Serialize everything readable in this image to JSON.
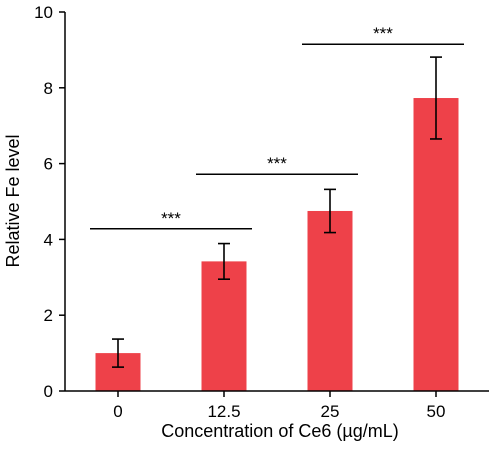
{
  "chart_data": {
    "type": "bar",
    "title": "",
    "xlabel": "Concentration of Ce6 (µg/mL)",
    "ylabel": "Relative Fe level",
    "categories": [
      "0",
      "12.5",
      "25",
      "50"
    ],
    "values": [
      1.0,
      3.42,
      4.75,
      7.73
    ],
    "errors": [
      0.37,
      0.47,
      0.57,
      1.08
    ],
    "ylim": [
      0,
      10
    ],
    "yticks": [
      0,
      2,
      4,
      6,
      8,
      10
    ],
    "bar_color": "#ee4149",
    "grid": false,
    "significance": [
      {
        "from": 0,
        "to": 1,
        "label": "***",
        "y": 4.28
      },
      {
        "from": 1,
        "to": 2,
        "label": "***",
        "y": 5.72
      },
      {
        "from": 2,
        "to": 3,
        "label": "***",
        "y": 9.15
      }
    ]
  }
}
